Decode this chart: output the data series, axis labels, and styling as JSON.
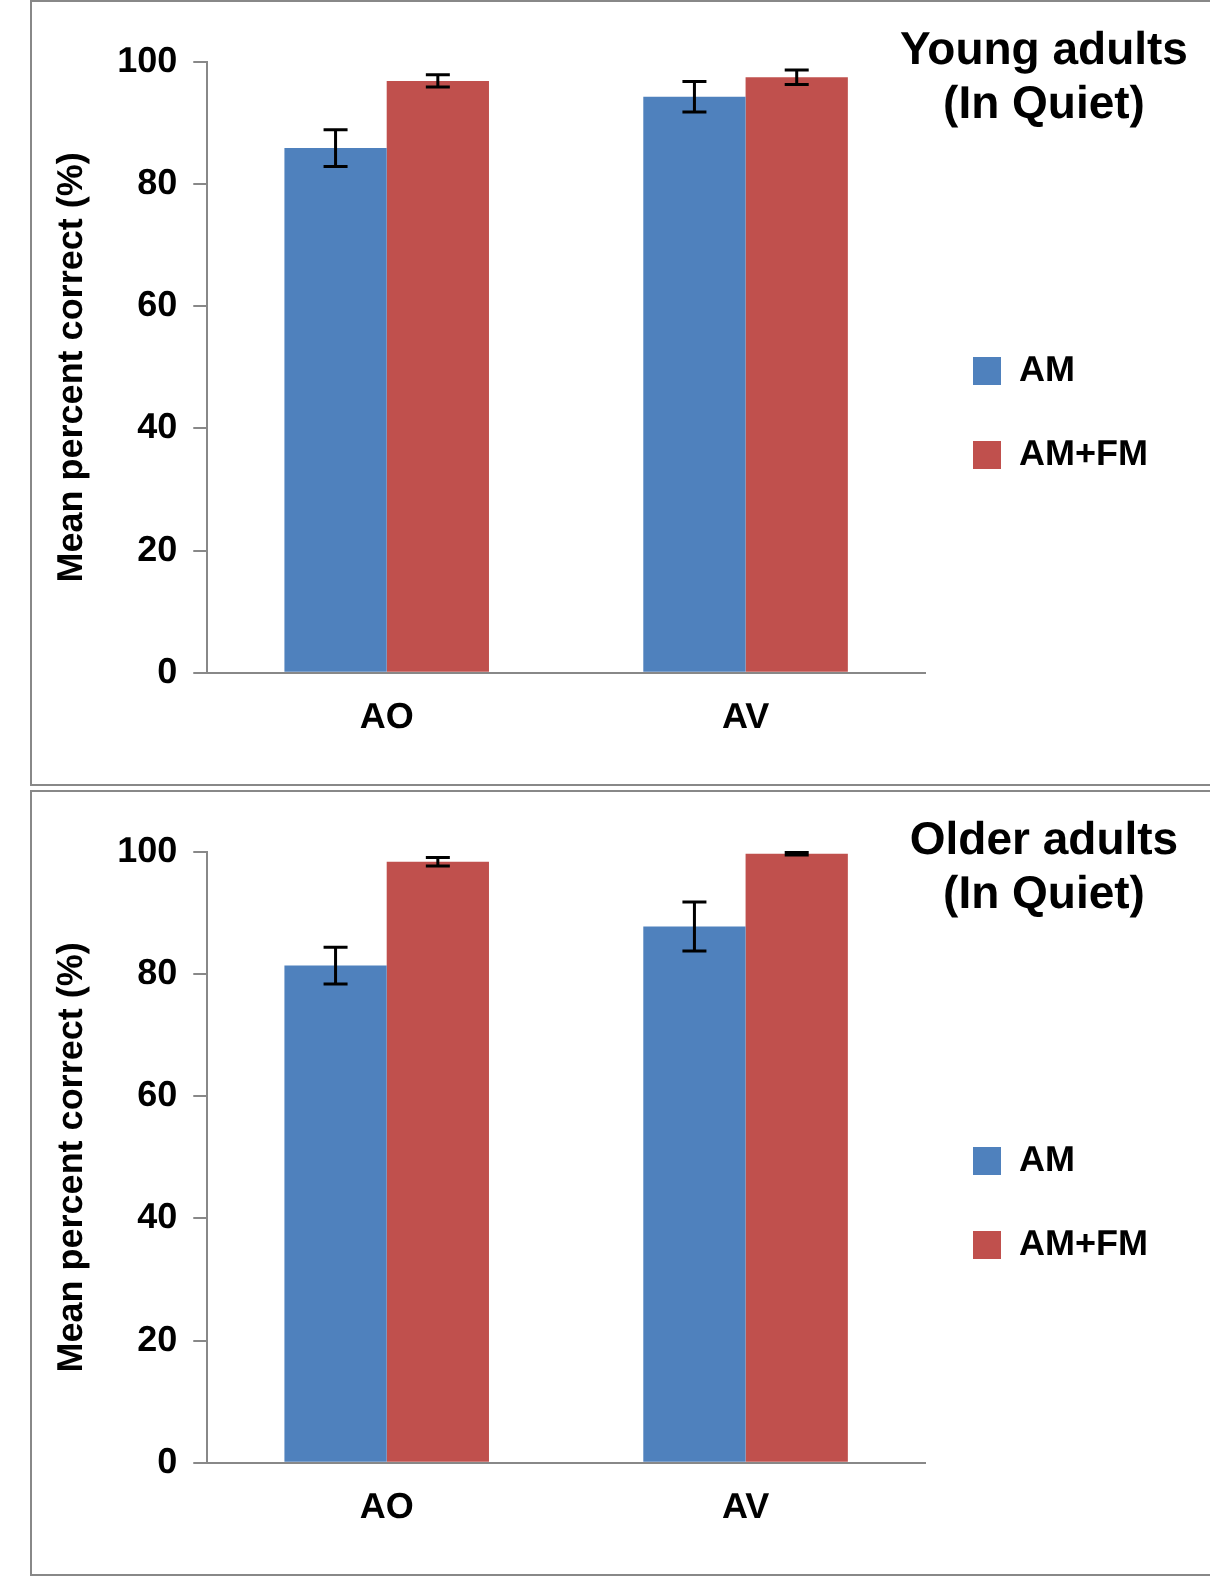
{
  "chart_data": [
    {
      "type": "bar",
      "title": "Young adults (In Quiet)",
      "ylabel": "Mean percent correct (%)",
      "categories": [
        "AO",
        "AV"
      ],
      "ylim": [
        0,
        100
      ],
      "yticks": [
        0,
        20,
        40,
        60,
        80,
        100
      ],
      "grid": false,
      "legend": "right",
      "series": [
        {
          "name": "AM",
          "color": "#4f81bd",
          "values": [
            85.9,
            94.3
          ],
          "errors": [
            3,
            2.5
          ]
        },
        {
          "name": "AM+FM",
          "color": "#c0504d",
          "values": [
            96.9,
            97.5
          ],
          "errors": [
            1,
            1.2
          ]
        }
      ]
    },
    {
      "type": "bar",
      "title": "Older adults (In Quiet)",
      "ylabel": "Mean percent correct (%)",
      "categories": [
        "AO",
        "AV"
      ],
      "ylim": [
        0,
        100
      ],
      "yticks": [
        0,
        20,
        40,
        60,
        80,
        100
      ],
      "grid": false,
      "legend": "right",
      "series": [
        {
          "name": "AM",
          "color": "#4f81bd",
          "values": [
            81.4,
            87.8
          ],
          "errors": [
            3,
            4
          ]
        },
        {
          "name": "AM+FM",
          "color": "#c0504d",
          "values": [
            98.4,
            99.7
          ],
          "errors": [
            0.7,
            0.2
          ]
        }
      ]
    }
  ]
}
